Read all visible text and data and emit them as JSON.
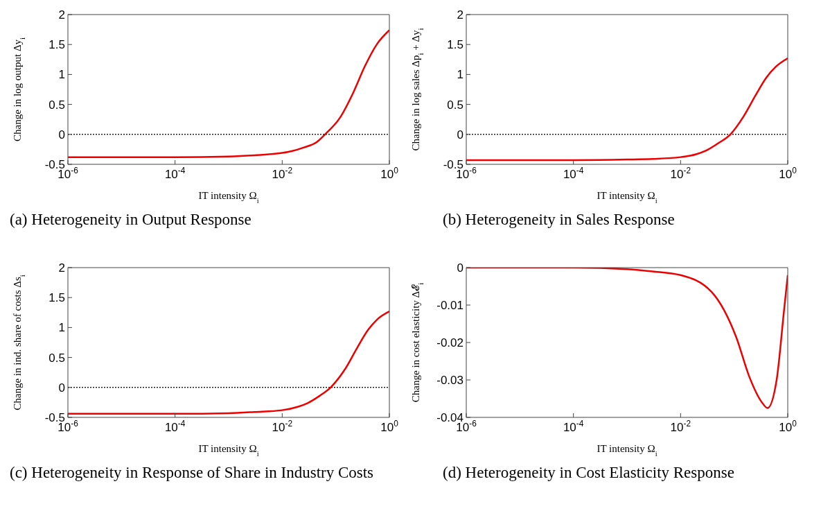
{
  "chart_data": [
    {
      "type": "line",
      "title": "(a) Heterogeneity in Output Response",
      "xlabel": "IT intensity Ω$_{i}$",
      "ylabel": "Change in log output Δy$_{i}$",
      "color": "#ee0000",
      "marker": "none",
      "log": "x",
      "x": [
        1e-06,
        1e-05,
        0.0001,
        0.001,
        0.003,
        0.01,
        0.015,
        0.025,
        0.044,
        0.063,
        0.12,
        0.21,
        0.35,
        0.59,
        1
      ],
      "values": [
        -0.38,
        -0.38,
        -0.38,
        -0.37,
        -0.35,
        -0.31,
        -0.28,
        -0.22,
        -0.13,
        0,
        0.28,
        0.69,
        1.14,
        1.51,
        1.74
      ],
      "xlim": [
        1e-06,
        1
      ],
      "xticks": [
        {
          "value": 1e-06,
          "label": "10$^{-6}$"
        },
        {
          "value": 0.0001,
          "label": "10$^{-4}$"
        },
        {
          "value": 0.01,
          "label": "10$^{-2}$"
        },
        {
          "value": 1,
          "label": "10$^{0}$"
        }
      ],
      "ylim": [
        -0.5,
        2
      ],
      "yticks": [
        -0.5,
        0,
        0.5,
        1,
        1.5,
        2
      ],
      "ref_lines": [
        {
          "axis": "y",
          "value": 0,
          "color": "#222222",
          "line_style": "dotted"
        }
      ]
    },
    {
      "type": "line",
      "title": "(b) Heterogeneity in Sales Response",
      "xlabel": "IT intensity Ω$_{i}$",
      "ylabel": "Change in log sales Δp$_{i}$ + Δy$_{i}$",
      "color": "#ee0000",
      "marker": "none",
      "log": "x",
      "x": [
        1e-06,
        1e-05,
        0.0001,
        0.001,
        0.003,
        0.01,
        0.02,
        0.03,
        0.05,
        0.085,
        0.15,
        0.25,
        0.4,
        0.6,
        1
      ],
      "values": [
        -0.43,
        -0.43,
        -0.43,
        -0.42,
        -0.41,
        -0.38,
        -0.33,
        -0.27,
        -0.15,
        0,
        0.3,
        0.65,
        0.95,
        1.13,
        1.27
      ],
      "xlim": [
        1e-06,
        1
      ],
      "xticks": [
        {
          "value": 1e-06,
          "label": "10$^{-6}$"
        },
        {
          "value": 0.0001,
          "label": "10$^{-4}$"
        },
        {
          "value": 0.01,
          "label": "10$^{-2}$"
        },
        {
          "value": 1,
          "label": "10$^{0}$"
        }
      ],
      "ylim": [
        -0.5,
        2
      ],
      "yticks": [
        -0.5,
        0,
        0.5,
        1,
        1.5,
        2
      ],
      "ref_lines": [
        {
          "axis": "y",
          "value": 0,
          "color": "#222222",
          "line_style": "dotted"
        }
      ]
    },
    {
      "type": "line",
      "title": "(c) Heterogeneity in Response of Share in Industry Costs",
      "xlabel": "IT intensity Ω$_{i}$",
      "ylabel": "Change in ind. share of costs Δs$_{i}$",
      "color": "#ee0000",
      "marker": "none",
      "log": "x",
      "x": [
        1e-06,
        1e-05,
        0.0001,
        0.001,
        0.003,
        0.01,
        0.02,
        0.03,
        0.05,
        0.08,
        0.15,
        0.25,
        0.4,
        0.6,
        1
      ],
      "values": [
        -0.44,
        -0.44,
        -0.44,
        -0.43,
        -0.41,
        -0.38,
        -0.32,
        -0.26,
        -0.14,
        0,
        0.31,
        0.66,
        0.96,
        1.14,
        1.27
      ],
      "xlim": [
        1e-06,
        1
      ],
      "xticks": [
        {
          "value": 1e-06,
          "label": "10$^{-6}$"
        },
        {
          "value": 0.0001,
          "label": "10$^{-4}$"
        },
        {
          "value": 0.01,
          "label": "10$^{-2}$"
        },
        {
          "value": 1,
          "label": "10$^{0}$"
        }
      ],
      "ylim": [
        -0.5,
        2
      ],
      "yticks": [
        -0.5,
        0,
        0.5,
        1,
        1.5,
        2
      ],
      "ref_lines": [
        {
          "axis": "y",
          "value": 0,
          "color": "#222222",
          "line_style": "dotted"
        }
      ]
    },
    {
      "type": "line",
      "title": "(d) Heterogeneity in Cost Elasticity Response",
      "xlabel": "IT intensity Ω$_{i}$",
      "ylabel": "Change in cost elasticity Δ𝓔$_{i}$",
      "color": "#ee0000",
      "marker": "none",
      "log": "x",
      "x": [
        1e-06,
        1e-05,
        0.0001,
        0.001,
        0.003,
        0.01,
        0.038,
        0.11,
        0.19,
        0.33,
        0.42,
        0.62,
        0.85,
        1
      ],
      "values": [
        0,
        0,
        0,
        -0.0004,
        -0.001,
        -0.002,
        -0.0065,
        -0.0187,
        -0.029,
        -0.036,
        -0.0375,
        -0.03,
        -0.0116,
        -0.002
      ],
      "xlim": [
        1e-06,
        1
      ],
      "xticks": [
        {
          "value": 1e-06,
          "label": "10$^{-6}$"
        },
        {
          "value": 0.0001,
          "label": "10$^{-4}$"
        },
        {
          "value": 0.01,
          "label": "10$^{-2}$"
        },
        {
          "value": 1,
          "label": "10$^{0}$"
        }
      ],
      "ylim": [
        -0.04,
        0
      ],
      "yticks": [
        -0.04,
        -0.03,
        -0.02,
        -0.01,
        0
      ]
    }
  ]
}
